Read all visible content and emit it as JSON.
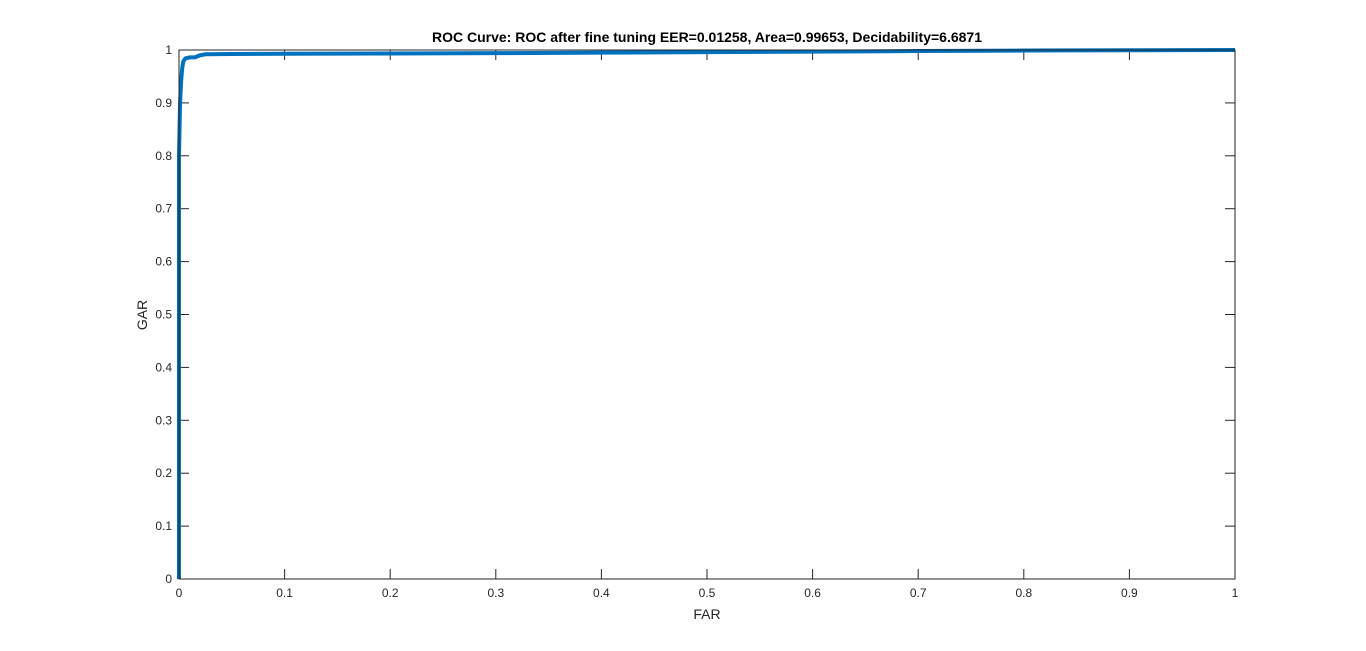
{
  "chart_data": {
    "type": "line",
    "title": "ROC Curve: ROC after fine tuning   EER=0.01258,   Area=0.99653,   Decidability=6.6871",
    "xlabel": "FAR",
    "ylabel": "GAR",
    "xlim": [
      0,
      1
    ],
    "ylim": [
      0,
      1
    ],
    "xticks": [
      0,
      0.1,
      0.2,
      0.3,
      0.4,
      0.5,
      0.6,
      0.7,
      0.8,
      0.9,
      1
    ],
    "xtick_labels": [
      "0",
      "0.1",
      "0.2",
      "0.3",
      "0.4",
      "0.5",
      "0.6",
      "0.7",
      "0.8",
      "0.9",
      "1"
    ],
    "yticks": [
      0,
      0.1,
      0.2,
      0.3,
      0.4,
      0.5,
      0.6,
      0.7,
      0.8,
      0.9,
      1
    ],
    "ytick_labels": [
      "0",
      "0.1",
      "0.2",
      "0.3",
      "0.4",
      "0.5",
      "0.6",
      "0.7",
      "0.8",
      "0.9",
      "1"
    ],
    "grid": false,
    "line_color": "#0072BD",
    "series": [
      {
        "x": [
          0,
          0,
          0,
          0.001,
          0.002,
          0.003,
          0.004,
          0.006,
          0.01,
          0.015,
          0.02,
          0.025,
          0.05,
          0.1,
          0.2,
          0.3,
          0.4,
          0.5,
          0.6,
          0.7,
          0.8,
          0.9,
          1
        ],
        "y": [
          0,
          0.5,
          0.8,
          0.9,
          0.94,
          0.965,
          0.978,
          0.984,
          0.986,
          0.986,
          0.99,
          0.992,
          0.9925,
          0.993,
          0.9935,
          0.994,
          0.995,
          0.996,
          0.997,
          0.998,
          0.999,
          0.9995,
          1
        ]
      }
    ]
  }
}
